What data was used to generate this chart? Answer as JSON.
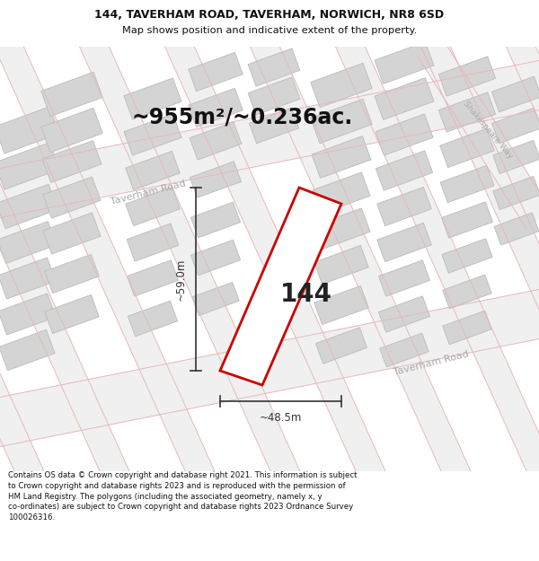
{
  "title_line1": "144, TAVERHAM ROAD, TAVERHAM, NORWICH, NR8 6SD",
  "title_line2": "Map shows position and indicative extent of the property.",
  "area_text": "~955m²/~0.236ac.",
  "width_label": "~48.5m",
  "height_label": "~59.0m",
  "house_number": "144",
  "footer_text": "Contains OS data © Crown copyright and database right 2021. This information is subject to Crown copyright and database rights 2023 and is reproduced with the permission of HM Land Registry. The polygons (including the associated geometry, namely x, y co-ordinates) are subject to Crown copyright and database rights 2023 Ordnance Survey 100026316.",
  "bg_color": "#ffffff",
  "map_bg": "#ffffff",
  "road_fill_color": "#eeeeee",
  "building_color": "#d4d4d4",
  "building_edge": "#bbbbbb",
  "road_line_color": "#e8b8b8",
  "road_label_color": "#aaaaaa",
  "plot_color": "#cc0000",
  "plot_fill": "#ffffff",
  "dim_color": "#333333",
  "title_color": "#111111",
  "footer_color": "#111111",
  "title_fontsize": 9.0,
  "subtitle_fontsize": 8.2,
  "area_fontsize": 17,
  "house_fontsize": 20,
  "dim_fontsize": 8.5,
  "road_label_fontsize": 8.0,
  "footer_fontsize": 6.2
}
